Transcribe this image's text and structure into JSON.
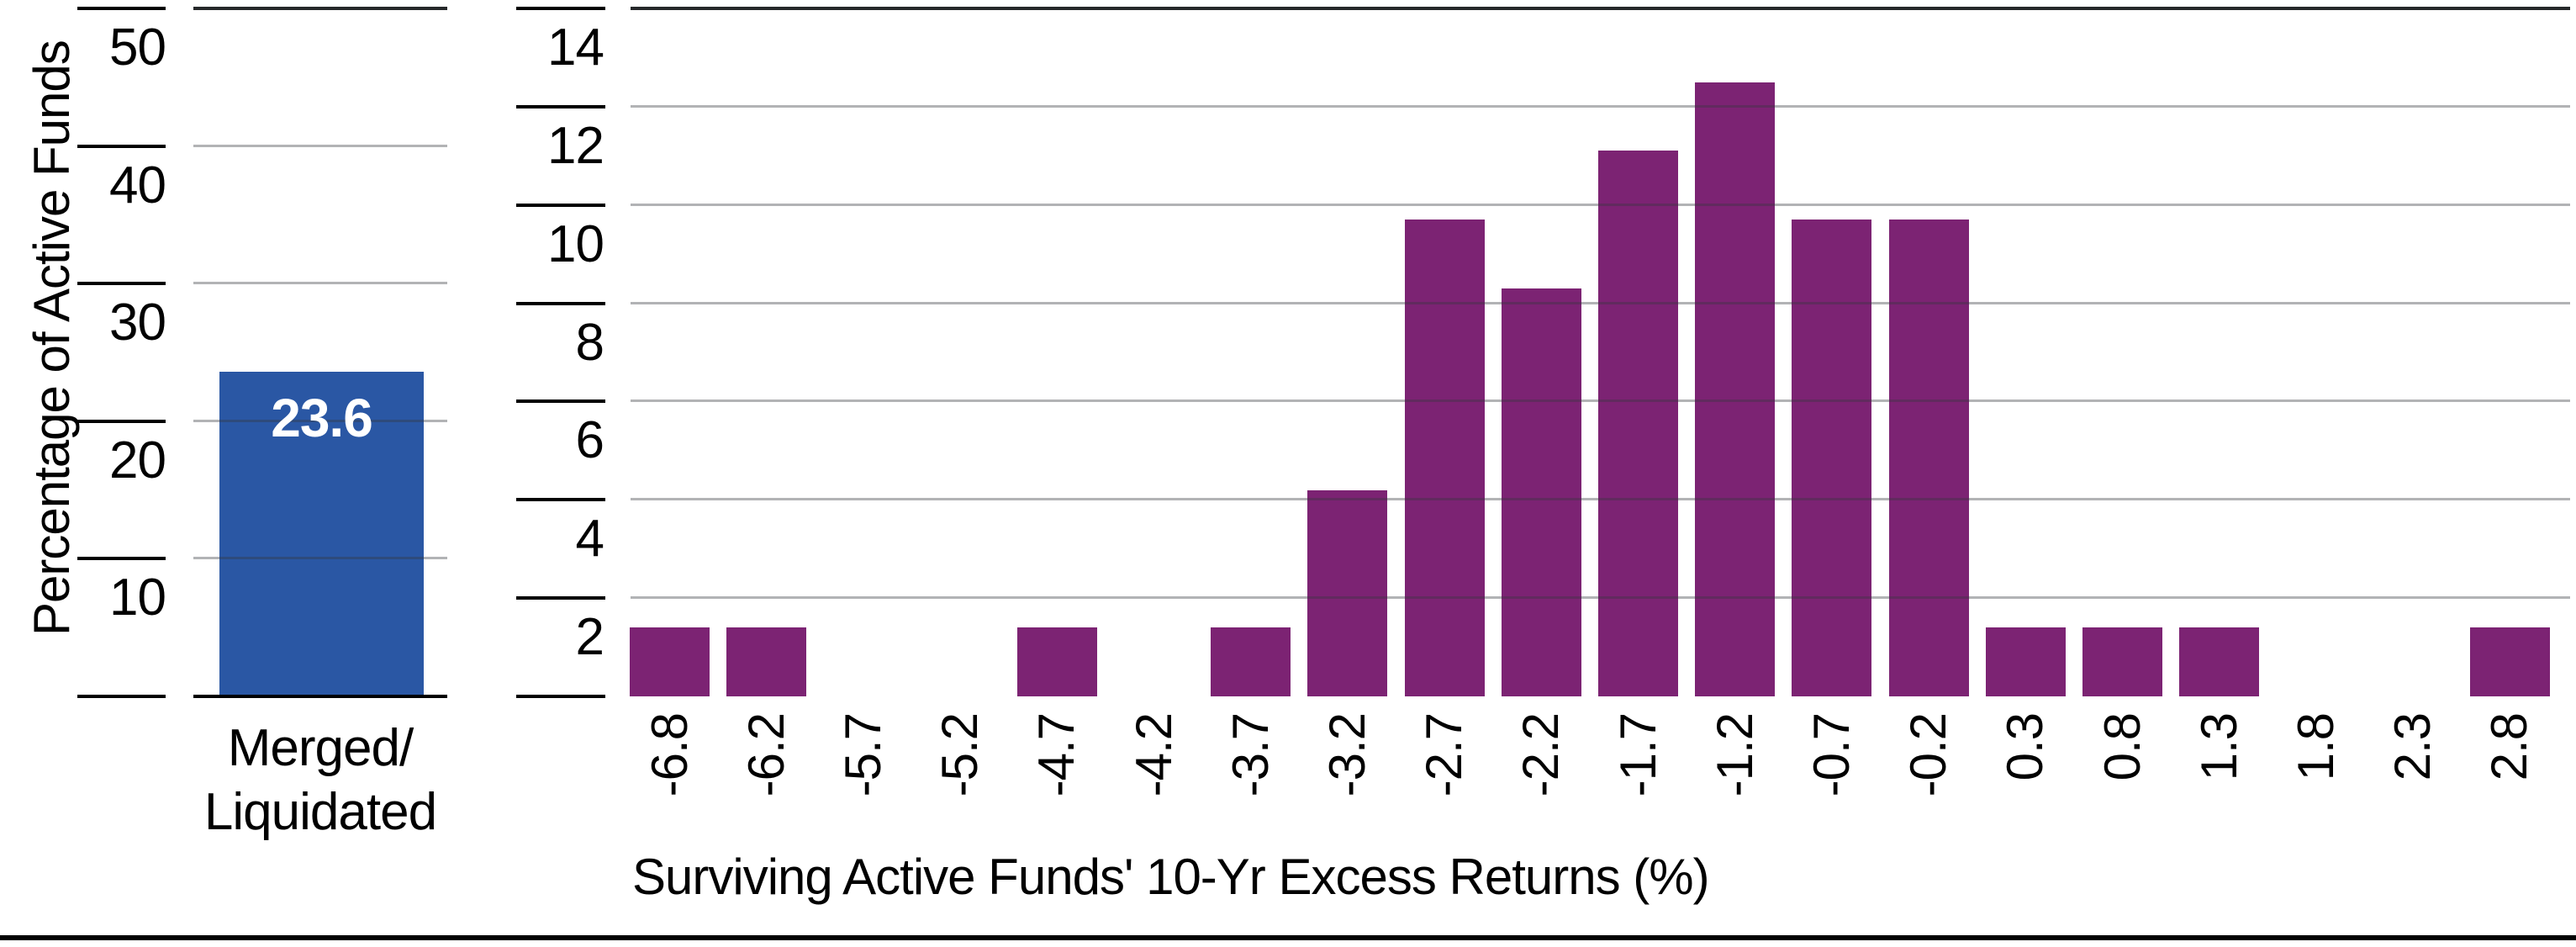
{
  "colors": {
    "background": "#ffffff",
    "merged_bar_blue": "#2a57a4",
    "histogram_bar_purple": "#7c2373",
    "gridline_gray": "#a9abad",
    "top_line_dark": "#26282a",
    "tick_black": "#000000",
    "bar_value_text": "#ffffff",
    "footer_rule": "#000000"
  },
  "chart_data": [
    {
      "type": "bar",
      "title": "",
      "xlabel": "",
      "ylabel": "Percentage of Active Funds",
      "categories": [
        "Merged/Liquidated"
      ],
      "category_display_lines": [
        "Merged/",
        "Liquidated"
      ],
      "values": [
        23.6
      ],
      "data_labels": [
        "23.6"
      ],
      "ylim": [
        0,
        52
      ],
      "yticks": [
        10,
        20,
        30,
        40,
        50
      ],
      "grid": true,
      "legend_position": "none",
      "bar_color": "#2a57a4"
    },
    {
      "type": "bar",
      "title": "",
      "xlabel": "Surviving Active Funds' 10-Yr Excess Returns (%)",
      "ylabel": "",
      "categories": [
        "-6.8",
        "-6.2",
        "-5.7",
        "-5.2",
        "-4.7",
        "-4.2",
        "-3.7",
        "-3.2",
        "-2.7",
        "-2.2",
        "-1.7",
        "-1.2",
        "-0.7",
        "-0.2",
        "0.3",
        "0.8",
        "1.3",
        "1.8",
        "2.3",
        "2.8"
      ],
      "values": [
        1.4,
        1.4,
        0,
        0,
        1.4,
        0,
        1.4,
        4.2,
        9.7,
        8.3,
        11.1,
        12.5,
        9.7,
        9.7,
        1.4,
        1.4,
        1.4,
        0,
        0,
        1.4
      ],
      "ylim": [
        0,
        14.2
      ],
      "yticks": [
        2,
        4,
        6,
        8,
        10,
        12,
        14
      ],
      "grid": true,
      "legend_position": "none",
      "bar_color": "#7c2373"
    }
  ]
}
